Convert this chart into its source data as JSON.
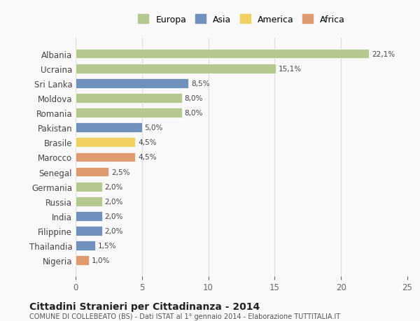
{
  "countries": [
    "Albania",
    "Ucraina",
    "Sri Lanka",
    "Moldova",
    "Romania",
    "Pakistan",
    "Brasile",
    "Marocco",
    "Senegal",
    "Germania",
    "Russia",
    "India",
    "Filippine",
    "Thailandia",
    "Nigeria"
  ],
  "values": [
    22.1,
    15.1,
    8.5,
    8.0,
    8.0,
    5.0,
    4.5,
    4.5,
    2.5,
    2.0,
    2.0,
    2.0,
    2.0,
    1.5,
    1.0
  ],
  "continents": [
    "Europa",
    "Europa",
    "Asia",
    "Europa",
    "Europa",
    "Asia",
    "America",
    "Africa",
    "Africa",
    "Europa",
    "Europa",
    "Asia",
    "Asia",
    "Asia",
    "Africa"
  ],
  "colors": {
    "Asia": "#7b9dc7",
    "America": "#f0d080",
    "Africa": "#e8a87c"
  },
  "continent_colors": {
    "Europa": "#b5c98e",
    "Asia": "#7090be",
    "America": "#f0d060",
    "Africa": "#e09a70"
  },
  "bar_colors": [
    "#b5c98e",
    "#b5c98e",
    "#7090be",
    "#b5c98e",
    "#b5c98e",
    "#7090be",
    "#f0d060",
    "#e09a70",
    "#e09a70",
    "#b5c98e",
    "#b5c98e",
    "#7090be",
    "#7090be",
    "#7090be",
    "#e09a70"
  ],
  "xlim": [
    0,
    25
  ],
  "xticks": [
    0,
    5,
    10,
    15,
    20,
    25
  ],
  "title": "Cittadini Stranieri per Cittadinanza - 2014",
  "subtitle": "COMUNE DI COLLEBEATO (BS) - Dati ISTAT al 1° gennaio 2014 - Elaborazione TUTTITALIA.IT",
  "legend_order": [
    "Europa",
    "Asia",
    "America",
    "Africa"
  ],
  "background_color": "#f9f9f9",
  "grid_color": "#dddddd"
}
